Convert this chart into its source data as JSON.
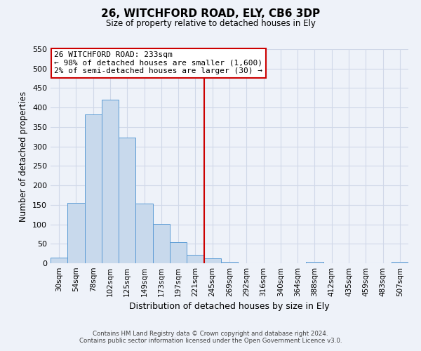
{
  "title": "26, WITCHFORD ROAD, ELY, CB6 3DP",
  "subtitle": "Size of property relative to detached houses in Ely",
  "xlabel": "Distribution of detached houses by size in Ely",
  "ylabel": "Number of detached properties",
  "bin_labels": [
    "30sqm",
    "54sqm",
    "78sqm",
    "102sqm",
    "125sqm",
    "149sqm",
    "173sqm",
    "197sqm",
    "221sqm",
    "245sqm",
    "269sqm",
    "292sqm",
    "316sqm",
    "340sqm",
    "364sqm",
    "388sqm",
    "412sqm",
    "435sqm",
    "459sqm",
    "483sqm",
    "507sqm"
  ],
  "bar_heights": [
    15,
    155,
    382,
    420,
    323,
    153,
    101,
    55,
    22,
    12,
    3,
    0,
    0,
    0,
    0,
    3,
    0,
    0,
    0,
    0,
    3
  ],
  "bar_color": "#c8d9ec",
  "bar_edge_color": "#5b9bd5",
  "vline_x": 8.5,
  "vline_color": "#cc0000",
  "annotation_title": "26 WITCHFORD ROAD: 233sqm",
  "annotation_line1": "← 98% of detached houses are smaller (1,600)",
  "annotation_line2": "2% of semi-detached houses are larger (30) →",
  "annotation_box_color": "#ffffff",
  "annotation_box_edge": "#cc0000",
  "ylim": [
    0,
    550
  ],
  "yticks": [
    0,
    50,
    100,
    150,
    200,
    250,
    300,
    350,
    400,
    450,
    500,
    550
  ],
  "grid_color": "#d0d8e8",
  "bg_color": "#eef2f9",
  "footer_line1": "Contains HM Land Registry data © Crown copyright and database right 2024.",
  "footer_line2": "Contains public sector information licensed under the Open Government Licence v3.0."
}
